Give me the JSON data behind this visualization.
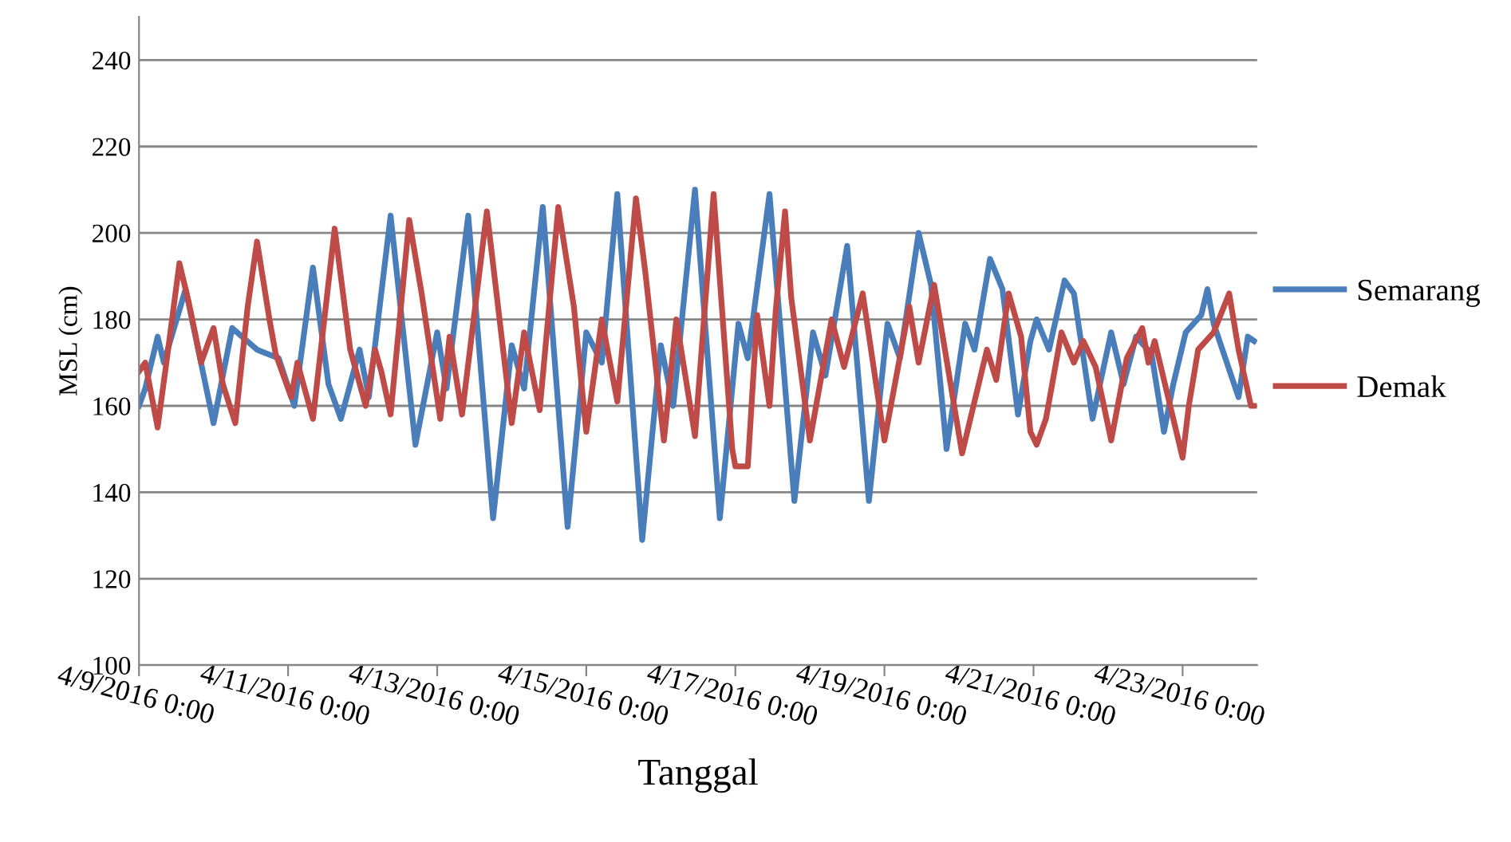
{
  "chart_data": {
    "type": "line",
    "xlabel": "Tanggal",
    "ylabel": "MSL (cm)",
    "xlim": [
      "2016-04-09",
      "2016-04-24"
    ],
    "ylim": [
      100,
      250
    ],
    "yticks": [
      100,
      120,
      140,
      160,
      180,
      200,
      220,
      240
    ],
    "xticks": [
      {
        "value": "2016-04-09",
        "label": "4/9/2016 0:00"
      },
      {
        "value": "2016-04-11",
        "label": "4/11/2016 0:00"
      },
      {
        "value": "2016-04-13",
        "label": "4/13/2016 0:00"
      },
      {
        "value": "2016-04-15",
        "label": "4/15/2016 0:00"
      },
      {
        "value": "2016-04-17",
        "label": "4/17/2016 0:00"
      },
      {
        "value": "2016-04-19",
        "label": "4/19/2016 0:00"
      },
      {
        "value": "2016-04-21",
        "label": "4/21/2016 0:00"
      },
      {
        "value": "2016-04-23",
        "label": "4/23/2016 0:00"
      }
    ],
    "grid": "y",
    "legend": "right",
    "marker": "none",
    "line_style": "solid",
    "series": [
      {
        "name": "Semarang",
        "color": "#4a7ebb",
        "x": [
          "2016-04-09T00:00",
          "2016-04-09T02:00",
          "2016-04-09T06:00",
          "2016-04-09T08:00",
          "2016-04-09T15:00",
          "2016-04-10T00:00",
          "2016-04-10T06:00",
          "2016-04-10T14:00",
          "2016-04-10T21:00",
          "2016-04-11T02:00",
          "2016-04-11T08:00",
          "2016-04-11T13:00",
          "2016-04-11T17:00",
          "2016-04-11T23:00",
          "2016-04-12T02:00",
          "2016-04-12T09:00",
          "2016-04-12T17:00",
          "2016-04-13T00:00",
          "2016-04-13T03:00",
          "2016-04-13T10:00",
          "2016-04-13T18:00",
          "2016-04-14T00:00",
          "2016-04-14T04:00",
          "2016-04-14T10:00",
          "2016-04-14T18:00",
          "2016-04-15T00:00",
          "2016-04-15T05:00",
          "2016-04-15T10:00",
          "2016-04-15T18:00",
          "2016-04-16T00:00",
          "2016-04-16T04:00",
          "2016-04-16T11:00",
          "2016-04-16T19:00",
          "2016-04-17T01:00",
          "2016-04-17T04:00",
          "2016-04-17T11:00",
          "2016-04-17T19:00",
          "2016-04-18T01:00",
          "2016-04-18T05:00",
          "2016-04-18T12:00",
          "2016-04-18T19:00",
          "2016-04-19T01:00",
          "2016-04-19T05:00",
          "2016-04-19T11:00",
          "2016-04-19T15:00",
          "2016-04-19T20:00",
          "2016-04-20T02:00",
          "2016-04-20T05:00",
          "2016-04-20T10:00",
          "2016-04-20T14:00",
          "2016-04-20T19:00",
          "2016-04-20T23:00",
          "2016-04-21T01:00",
          "2016-04-21T05:00",
          "2016-04-21T10:00",
          "2016-04-21T13:00",
          "2016-04-21T19:00",
          "2016-04-22T01:00",
          "2016-04-22T05:00",
          "2016-04-22T09:00",
          "2016-04-22T14:00",
          "2016-04-22T18:00",
          "2016-04-22T21:00",
          "2016-04-23T01:00",
          "2016-04-23T06:00",
          "2016-04-23T08:00",
          "2016-04-23T10:00",
          "2016-04-23T18:00",
          "2016-04-23T21:00",
          "2016-04-23T23:00"
        ],
        "values": [
          160,
          164,
          176,
          170,
          187,
          156,
          178,
          173,
          171,
          160,
          192,
          165,
          157,
          173,
          162,
          204,
          151,
          177,
          164,
          204,
          134,
          174,
          164,
          206,
          132,
          177,
          170,
          209,
          129,
          174,
          160,
          210,
          134,
          179,
          171,
          209,
          138,
          177,
          167,
          197,
          138,
          179,
          171,
          200,
          188,
          150,
          179,
          173,
          194,
          187,
          158,
          175,
          180,
          173,
          189,
          186,
          157,
          177,
          165,
          176,
          172,
          154,
          165,
          177,
          181,
          187,
          179,
          162,
          176,
          175
        ]
      },
      {
        "name": "Demak",
        "color": "#be4b48",
        "x": [
          "2016-04-09T00:00",
          "2016-04-09T02:00",
          "2016-04-09T06:00",
          "2016-04-09T09:00",
          "2016-04-09T13:00",
          "2016-04-09T16:00",
          "2016-04-09T20:00",
          "2016-04-10T00:00",
          "2016-04-10T03:00",
          "2016-04-10T07:00",
          "2016-04-10T11:00",
          "2016-04-10T14:00",
          "2016-04-10T18:00",
          "2016-04-10T20:00",
          "2016-04-11T01:00",
          "2016-04-11T03:00",
          "2016-04-11T08:00",
          "2016-04-11T15:00",
          "2016-04-11T20:00",
          "2016-04-12T01:00",
          "2016-04-12T04:00",
          "2016-04-12T06:00",
          "2016-04-12T09:00",
          "2016-04-12T15:00",
          "2016-04-12T19:00",
          "2016-04-13T01:00",
          "2016-04-13T04:00",
          "2016-04-13T08:00",
          "2016-04-13T16:00",
          "2016-04-14T00:00",
          "2016-04-14T04:00",
          "2016-04-14T09:00",
          "2016-04-14T15:00",
          "2016-04-14T20:00",
          "2016-04-15T00:00",
          "2016-04-15T05:00",
          "2016-04-15T10:00",
          "2016-04-15T16:00",
          "2016-04-15T19:00",
          "2016-04-16T01:00",
          "2016-04-16T05:00",
          "2016-04-16T11:00",
          "2016-04-16T17:00",
          "2016-04-16T23:00",
          "2016-04-17T00:00",
          "2016-04-17T04:00",
          "2016-04-17T07:00",
          "2016-04-17T11:00",
          "2016-04-17T13:00",
          "2016-04-17T16:00",
          "2016-04-17T18:00",
          "2016-04-18T00:00",
          "2016-04-18T07:00",
          "2016-04-18T11:00",
          "2016-04-18T17:00",
          "2016-04-19T00:00",
          "2016-04-19T08:00",
          "2016-04-19T11:00",
          "2016-04-19T16:00",
          "2016-04-20T01:00",
          "2016-04-20T09:00",
          "2016-04-20T12:00",
          "2016-04-20T16:00",
          "2016-04-20T20:00",
          "2016-04-20T23:00",
          "2016-04-21T01:00",
          "2016-04-21T04:00",
          "2016-04-21T09:00",
          "2016-04-21T13:00",
          "2016-04-21T16:00",
          "2016-04-21T20:00",
          "2016-04-22T01:00",
          "2016-04-22T06:00",
          "2016-04-22T11:00",
          "2016-04-22T13:00",
          "2016-04-22T15:00",
          "2016-04-22T19:00",
          "2016-04-23T00:00",
          "2016-04-23T02:00",
          "2016-04-23T05:00",
          "2016-04-23T10:00",
          "2016-04-23T15:00",
          "2016-04-23T18:00",
          "2016-04-23T22:00",
          "2016-04-23T23:00"
        ],
        "values": [
          168,
          170,
          155,
          171,
          193,
          184,
          170,
          178,
          165,
          156,
          183,
          198,
          180,
          172,
          162,
          170,
          157,
          201,
          173,
          160,
          173,
          168,
          158,
          203,
          186,
          157,
          176,
          158,
          205,
          156,
          177,
          159,
          206,
          183,
          154,
          180,
          161,
          208,
          191,
          152,
          180,
          153,
          209,
          150,
          146,
          146,
          181,
          160,
          182,
          205,
          185,
          152,
          180,
          169,
          186,
          152,
          183,
          170,
          188,
          149,
          173,
          166,
          186,
          176,
          154,
          151,
          157,
          177,
          170,
          175,
          169,
          152,
          171,
          178,
          170,
          175,
          163,
          148,
          160,
          173,
          177,
          186,
          173,
          160,
          160
        ]
      }
    ]
  }
}
